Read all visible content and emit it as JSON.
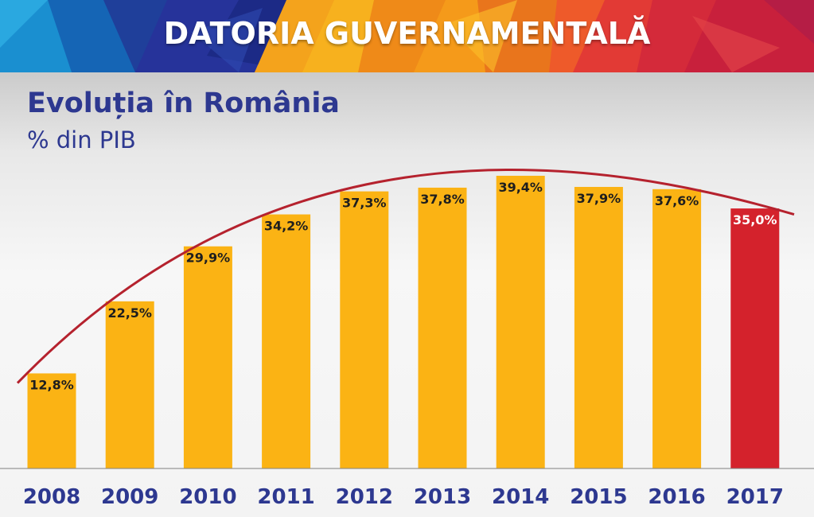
{
  "banner": {
    "title": "DATORIA GUVERNAMENTALĂ"
  },
  "chart_data": {
    "type": "bar",
    "title": "Evoluția în România",
    "subtitle": "% din PIB",
    "categories": [
      "2008",
      "2009",
      "2010",
      "2011",
      "2012",
      "2013",
      "2014",
      "2015",
      "2016",
      "2017"
    ],
    "values": [
      12.8,
      22.5,
      29.9,
      34.2,
      37.3,
      37.8,
      39.4,
      37.9,
      37.6,
      35.0
    ],
    "data_labels": [
      "12,8%",
      "22,5%",
      "29,9%",
      "34,2%",
      "37,3%",
      "37,8%",
      "39,4%",
      "37,9%",
      "37,6%",
      "35,0%"
    ],
    "bar_colors": [
      "#fbb314",
      "#fbb314",
      "#fbb314",
      "#fbb314",
      "#fbb314",
      "#fbb314",
      "#fbb314",
      "#fbb314",
      "#fbb314",
      "#d4222c"
    ],
    "label_colors": [
      "#1e1e1e",
      "#1e1e1e",
      "#1e1e1e",
      "#1e1e1e",
      "#1e1e1e",
      "#1e1e1e",
      "#1e1e1e",
      "#1e1e1e",
      "#1e1e1e",
      "#ffffff"
    ],
    "trend_line": {
      "color": "#b5222e",
      "shape": "curve"
    },
    "ylim": [
      0,
      39.4
    ],
    "grid": false,
    "legend": "none"
  },
  "colors": {
    "title_blue": "#2d3890",
    "bar_yellow": "#fbb314",
    "bar_red": "#d4222c",
    "axis_line": "#808080"
  }
}
